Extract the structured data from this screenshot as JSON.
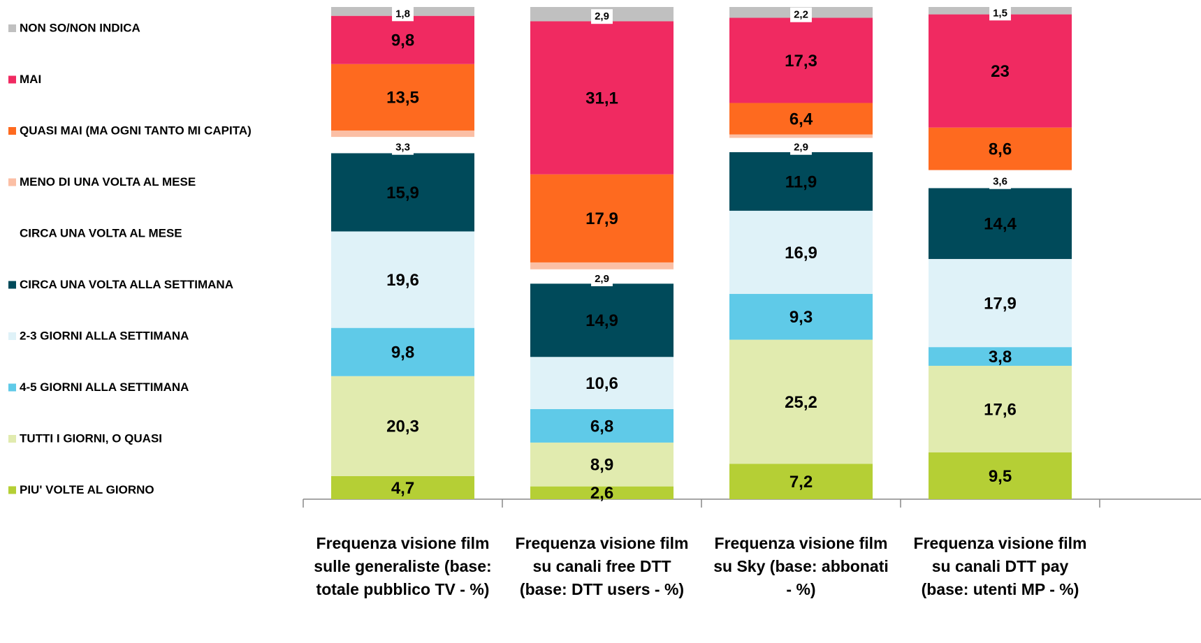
{
  "chart_data": {
    "type": "stacked_bar",
    "categories": [
      [
        "Frequenza visione film",
        "sulle generaliste (base:",
        "totale pubblico TV - %)"
      ],
      [
        "Frequenza visione film",
        "su canali free DTT",
        "(base: DTT users - %)"
      ],
      [
        "Frequenza visione film",
        "su Sky (base: abbonati",
        "- %)"
      ],
      [
        "Frequenza visione film",
        "su canali  DTT pay",
        "(base: utenti MP - %)"
      ]
    ],
    "ylim": [
      0,
      100
    ],
    "series": [
      {
        "name": "PIU' VOLTE AL GIORNO",
        "color": "#b5cf35",
        "values": [
          4.7,
          2.6,
          7.2,
          9.5
        ],
        "value_labels": [
          "4,7",
          "2,6",
          "7,2",
          "9,5"
        ]
      },
      {
        "name": "TUTTI I GIORNI, O QUASI",
        "color": "#e1ebaf",
        "values": [
          20.3,
          8.9,
          25.2,
          17.6
        ],
        "value_labels": [
          "20,3",
          "8,9",
          "25,2",
          "17,6"
        ]
      },
      {
        "name": "4-5 GIORNI ALLA SETTIMANA",
        "color": "#5fcae8",
        "values": [
          9.8,
          6.8,
          9.3,
          3.8
        ],
        "value_labels": [
          "9,8",
          "6,8",
          "9,3",
          "3,8"
        ]
      },
      {
        "name": "2-3 GIORNI ALLA SETTIMANA",
        "color": "#dff2f8",
        "values": [
          19.6,
          10.6,
          16.9,
          17.9
        ],
        "value_labels": [
          "19,6",
          "10,6",
          "16,9",
          "17,9"
        ]
      },
      {
        "name": "CIRCA UNA VOLTA ALLA SETTIMANA",
        "color": "#004a5a",
        "values": [
          15.9,
          14.9,
          11.9,
          14.4
        ],
        "value_labels": [
          "15,9",
          "14,9",
          "11,9",
          "14,4"
        ]
      },
      {
        "name": "CIRCA UNA VOLTA AL MESE",
        "color": "#ffffff",
        "values": [
          3.3,
          2.9,
          2.9,
          3.6
        ],
        "value_labels": [
          "3,3",
          "2,9",
          "2,9",
          "3,6"
        ]
      },
      {
        "name": "MENO DI UNA VOLTA AL MESE",
        "color": "#fbbfa5",
        "values": [
          1.3,
          1.4,
          0.7,
          0.1
        ],
        "value_labels": [
          null,
          null,
          null,
          null
        ]
      },
      {
        "name": "QUASI MAI (MA OGNI TANTO MI CAPITA)",
        "color": "#fe6a1f",
        "values": [
          13.5,
          17.9,
          6.4,
          8.6
        ],
        "value_labels": [
          "13,5",
          "17,9",
          "6,4",
          "8,6"
        ]
      },
      {
        "name": "MAI",
        "color": "#f02a61",
        "values": [
          9.8,
          31.1,
          17.3,
          23
        ],
        "value_labels": [
          "9,8",
          "31,1",
          "17,3",
          "23"
        ]
      },
      {
        "name": "NON SO/NON INDICA",
        "color": "#c0c0c0",
        "values": [
          1.8,
          2.9,
          2.2,
          1.5
        ],
        "value_labels": [
          "1,8",
          "2,9",
          "2,2",
          "1,5"
        ]
      }
    ],
    "legend": "left"
  }
}
